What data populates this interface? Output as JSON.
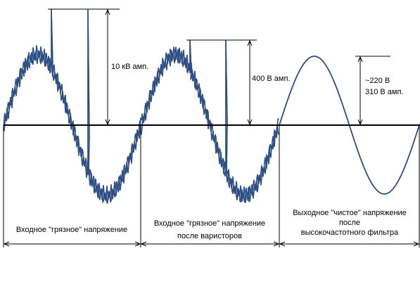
{
  "annotations": {
    "spike1": "10 кВ амп.",
    "spike2": "400 В амп.",
    "clean_rms": "~220 В",
    "clean_amp": "310 В амп."
  },
  "sections": [
    {
      "lines": [
        "Входное \"грязное\" напряжение"
      ]
    },
    {
      "lines": [
        "Входное \"грязное\" напряжение",
        "после варисторов"
      ]
    },
    {
      "lines": [
        "Выходное \"чистое\" напряжение",
        "после",
        "высокочастотного фильтра"
      ]
    }
  ]
}
